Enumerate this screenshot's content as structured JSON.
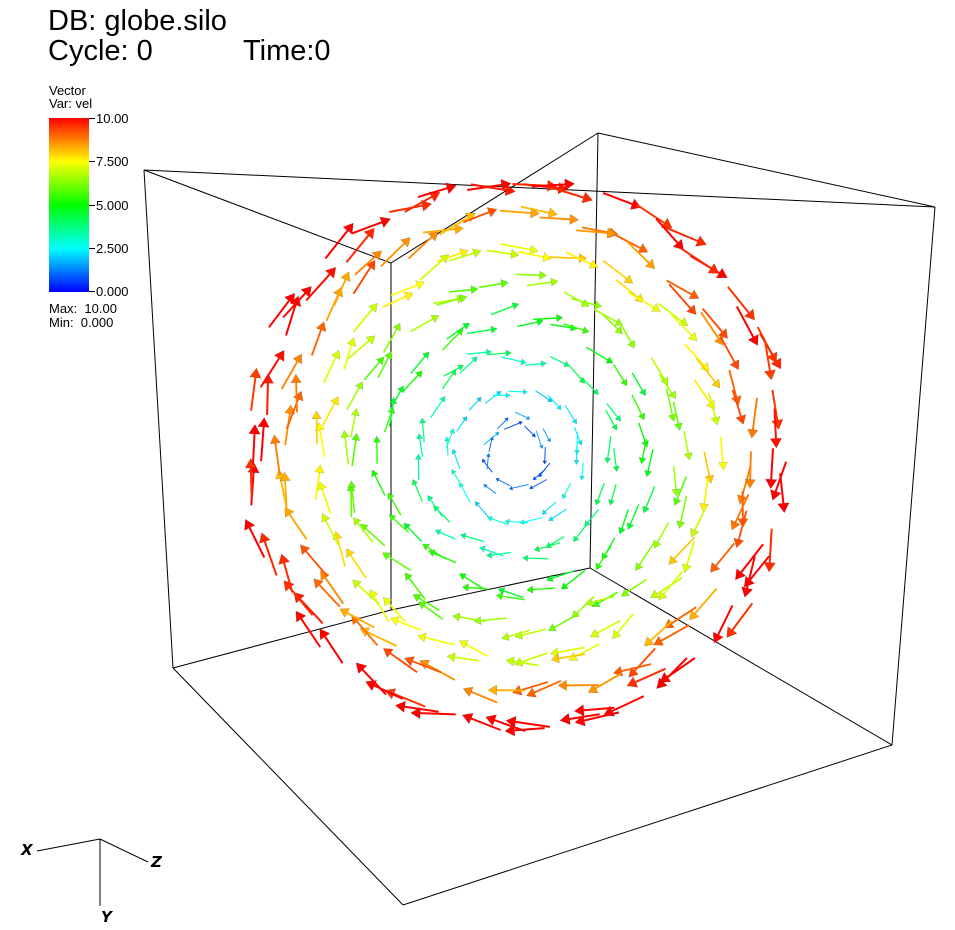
{
  "header": {
    "database": "DB: globe.silo",
    "cycle": "Cycle: 0",
    "time": "Time:0"
  },
  "legend": {
    "plot_type": "Vector",
    "variable": "Var: vel",
    "ticks": [
      "10.00",
      "7.500",
      "5.000",
      "2.500",
      "0.000"
    ],
    "max": "Max:  10.00",
    "min": "Min:  0.000",
    "color_min": "#0000ff",
    "color_max": "#ff0000"
  },
  "field": {
    "min_value": 0.0,
    "max_value": 10.0,
    "rings": 8
  },
  "triad": {
    "x": "X",
    "y": "Y",
    "z": "Z"
  }
}
